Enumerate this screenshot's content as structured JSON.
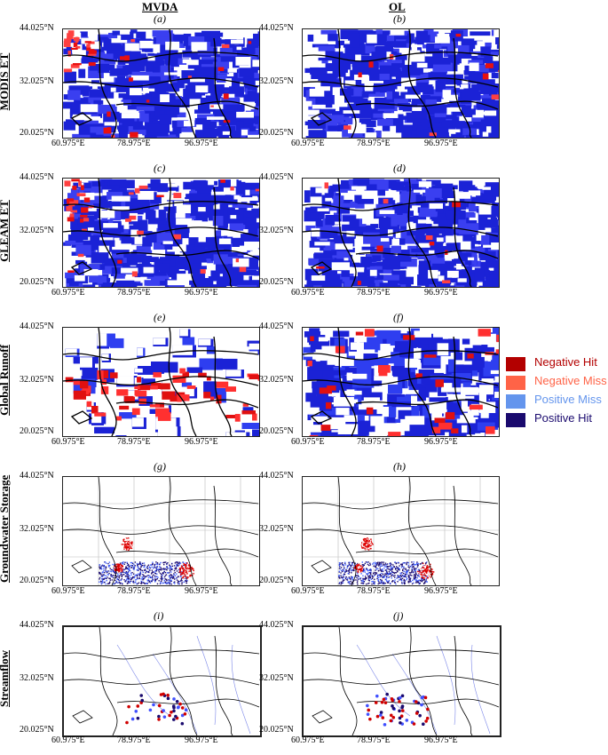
{
  "columns": {
    "left": "MVDA",
    "right": "OL"
  },
  "rows": [
    {
      "label": "MODIS ET",
      "left_panel": "(a)",
      "right_panel": "(b)",
      "style": "et"
    },
    {
      "label": "GLEAM ET",
      "left_panel": "(c)",
      "right_panel": "(d)",
      "style": "et"
    },
    {
      "label": "Global Runoff",
      "left_panel": "(e)",
      "right_panel": "(f)",
      "style": "runoff"
    },
    {
      "label": "Groundwater Storage",
      "left_panel": "(g)",
      "right_panel": "(h)",
      "style": "gw"
    },
    {
      "label": "Streamflow",
      "left_panel": "(i)",
      "right_panel": "(j)",
      "style": "sf"
    }
  ],
  "axes": {
    "lat_ticks": [
      "44.025°N",
      "32.025°N",
      "20.025°N"
    ],
    "lon_ticks": [
      "60.975°E",
      "78.975°E",
      "96.975°E"
    ]
  },
  "legend": [
    {
      "label": "Negative Hit",
      "color": "#b30000",
      "text_color": "#b30000"
    },
    {
      "label": "Negative Miss",
      "color": "#ff6347",
      "text_color": "#ff6347"
    },
    {
      "label": "Positive Miss",
      "color": "#6495ed",
      "text_color": "#6495ed"
    },
    {
      "label": "Positive Hit",
      "color": "#1a0a6e",
      "text_color": "#1a0a6e"
    }
  ]
}
